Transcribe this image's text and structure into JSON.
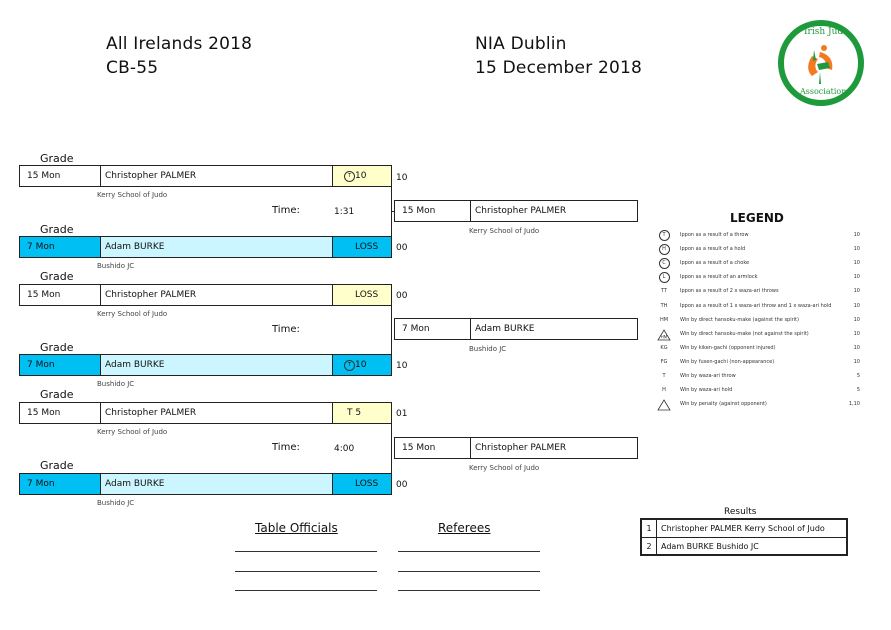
{
  "header": {
    "event": "All Irelands 2018",
    "category": "CB-55",
    "venue": "NIA Dublin",
    "date": "15 December 2018",
    "logo_top": "Irish Judo",
    "logo_bottom": "Association"
  },
  "grade_label": "Grade",
  "time_label": "Time:",
  "matches": [
    {
      "white": {
        "grade": "15 Mon",
        "name": "Christopher PALMER",
        "club": "Kerry School of Judo",
        "score_symbol": "T",
        "score": "10",
        "result": "10"
      },
      "blue": {
        "grade": "7 Mon",
        "name": "Adam BURKE",
        "club": "Bushido JC",
        "score": "LOSS",
        "result": "00"
      },
      "time": "1:31",
      "winner": {
        "grade": "15 Mon",
        "name": "Christopher PALMER",
        "club": "Kerry School of Judo"
      }
    },
    {
      "white": {
        "grade": "15 Mon",
        "name": "Christopher PALMER",
        "club": "Kerry School of Judo",
        "score": "LOSS",
        "result": "00"
      },
      "blue": {
        "grade": "7 Mon",
        "name": "Adam BURKE",
        "club": "Bushido JC",
        "score_symbol": "T",
        "score": "10",
        "result": "10"
      },
      "time": "",
      "winner": {
        "grade": "7 Mon",
        "name": "Adam BURKE",
        "club": "Bushido JC"
      }
    },
    {
      "white": {
        "grade": "15 Mon",
        "name": "Christopher PALMER",
        "club": "Kerry School of Judo",
        "score": "T 5",
        "result": "01"
      },
      "blue": {
        "grade": "7 Mon",
        "name": "Adam BURKE",
        "club": "Bushido JC",
        "score": "LOSS",
        "result": "00"
      },
      "time": "4:00",
      "winner": {
        "grade": "15 Mon",
        "name": "Christopher PALMER",
        "club": "Kerry School of Judo"
      }
    }
  ],
  "legend": {
    "title": "LEGEND",
    "items": [
      {
        "symbol": "T",
        "circled": true,
        "desc": "Ippon as a result of a throw",
        "pts": "10"
      },
      {
        "symbol": "H",
        "circled": true,
        "desc": "Ippon as a result of a hold",
        "pts": "10"
      },
      {
        "symbol": "C",
        "circled": true,
        "desc": "Ippon as a result of a choke",
        "pts": "10"
      },
      {
        "symbol": "L",
        "circled": true,
        "desc": "Ippon as a result of an armlock",
        "pts": "10"
      },
      {
        "symbol": "TT",
        "desc": "Ippon as a result of 2 x waza-ari throws",
        "pts": "10"
      },
      {
        "symbol": "TH",
        "desc": "Ippon as a result of 1 x waza-ari throw and 1 x waza-ari hold",
        "pts": "10"
      },
      {
        "symbol": "HM",
        "desc": "Win by direct hansoku-make (against the spirit)",
        "pts": "10"
      },
      {
        "symbol": "HM",
        "triangle": true,
        "desc": "Win by direct hansoku-make (not against the spirit)",
        "pts": "10"
      },
      {
        "symbol": "KG",
        "desc": "Win by kiken-gachi (opponent injured)",
        "pts": "10"
      },
      {
        "symbol": "FG",
        "desc": "Win by fusen-gachi (non-appearance)",
        "pts": "10"
      },
      {
        "symbol": "T",
        "desc": "Win by waza-ari throw",
        "pts": "5"
      },
      {
        "symbol": "H",
        "desc": "Win by waza-ari hold",
        "pts": "5"
      },
      {
        "symbol": "",
        "triangle": true,
        "desc": "Win by penalty (against opponent)",
        "pts": "1,10"
      }
    ]
  },
  "officials": {
    "table": "Table Officials",
    "referees": "Referees"
  },
  "results": {
    "title": "Results",
    "rows": [
      {
        "num": "1",
        "text": "Christopher PALMER Kerry School of Judo"
      },
      {
        "num": "2",
        "text": "Adam BURKE Bushido JC"
      }
    ]
  }
}
